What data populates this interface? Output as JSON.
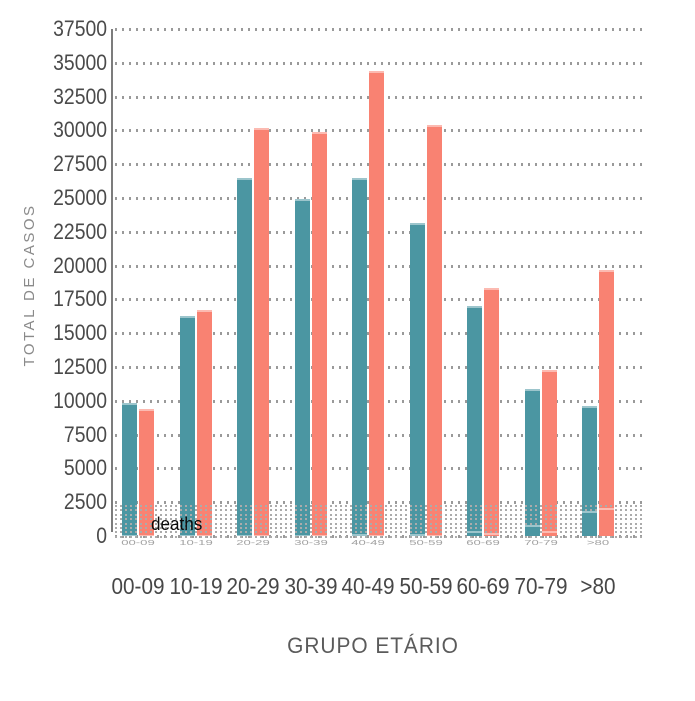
{
  "chart_data": {
    "type": "bar",
    "title": "",
    "categories": [
      "00-09",
      "10-19",
      "20-29",
      "30-39",
      "40-49",
      "50-59",
      "60-69",
      "70-79",
      ">80"
    ],
    "xlabel": "GRUPO ETÁRIO",
    "ylabel": "TOTAL DE CASOS",
    "ylim": [
      0,
      37500
    ],
    "ytick_step": 2500,
    "yticks": [
      "37500",
      "35000",
      "32500",
      "30000",
      "27500",
      "25000",
      "22500",
      "20000",
      "17500",
      "15000",
      "12500",
      "10000",
      "7500",
      "5000",
      "2500",
      "0"
    ],
    "grid": "dotted-horizontal",
    "legend": "none",
    "series": [
      {
        "name": "casos-serie-1",
        "color": "#4b96a2",
        "values": [
          9850,
          16300,
          26500,
          24900,
          26500,
          23150,
          17000,
          10850,
          9600
        ]
      },
      {
        "name": "casos-serie-2",
        "color": "#f98272",
        "values": [
          9400,
          16750,
          30200,
          29900,
          34400,
          30400,
          18350,
          12250,
          19700
        ]
      }
    ],
    "inset": {
      "label": "deaths",
      "series": [
        {
          "name": "deaths-serie-1",
          "color": "#4b96a2",
          "values": [
            30,
            30,
            70,
            80,
            150,
            150,
            370,
            820,
            1870
          ]
        },
        {
          "name": "deaths-serie-2",
          "color": "#f98272",
          "values": [
            30,
            30,
            50,
            60,
            90,
            90,
            220,
            380,
            2090
          ]
        }
      ],
      "ghost_x_labels": [
        "00-09",
        "10-19",
        "20-29",
        "30-39",
        "40-49",
        "50-59",
        "60-69",
        "70-79",
        ">80"
      ]
    }
  },
  "colors": {
    "teal": "#4b96a2",
    "salmon": "#f98272",
    "grid_dots": "#9a9a9a",
    "axis_line": "#7c7c7c",
    "tick_text": "#4a4a4a",
    "axis_title_text": "#8a8a8a",
    "deaths_text": "#0a0a0a",
    "background": "#ffffff"
  }
}
